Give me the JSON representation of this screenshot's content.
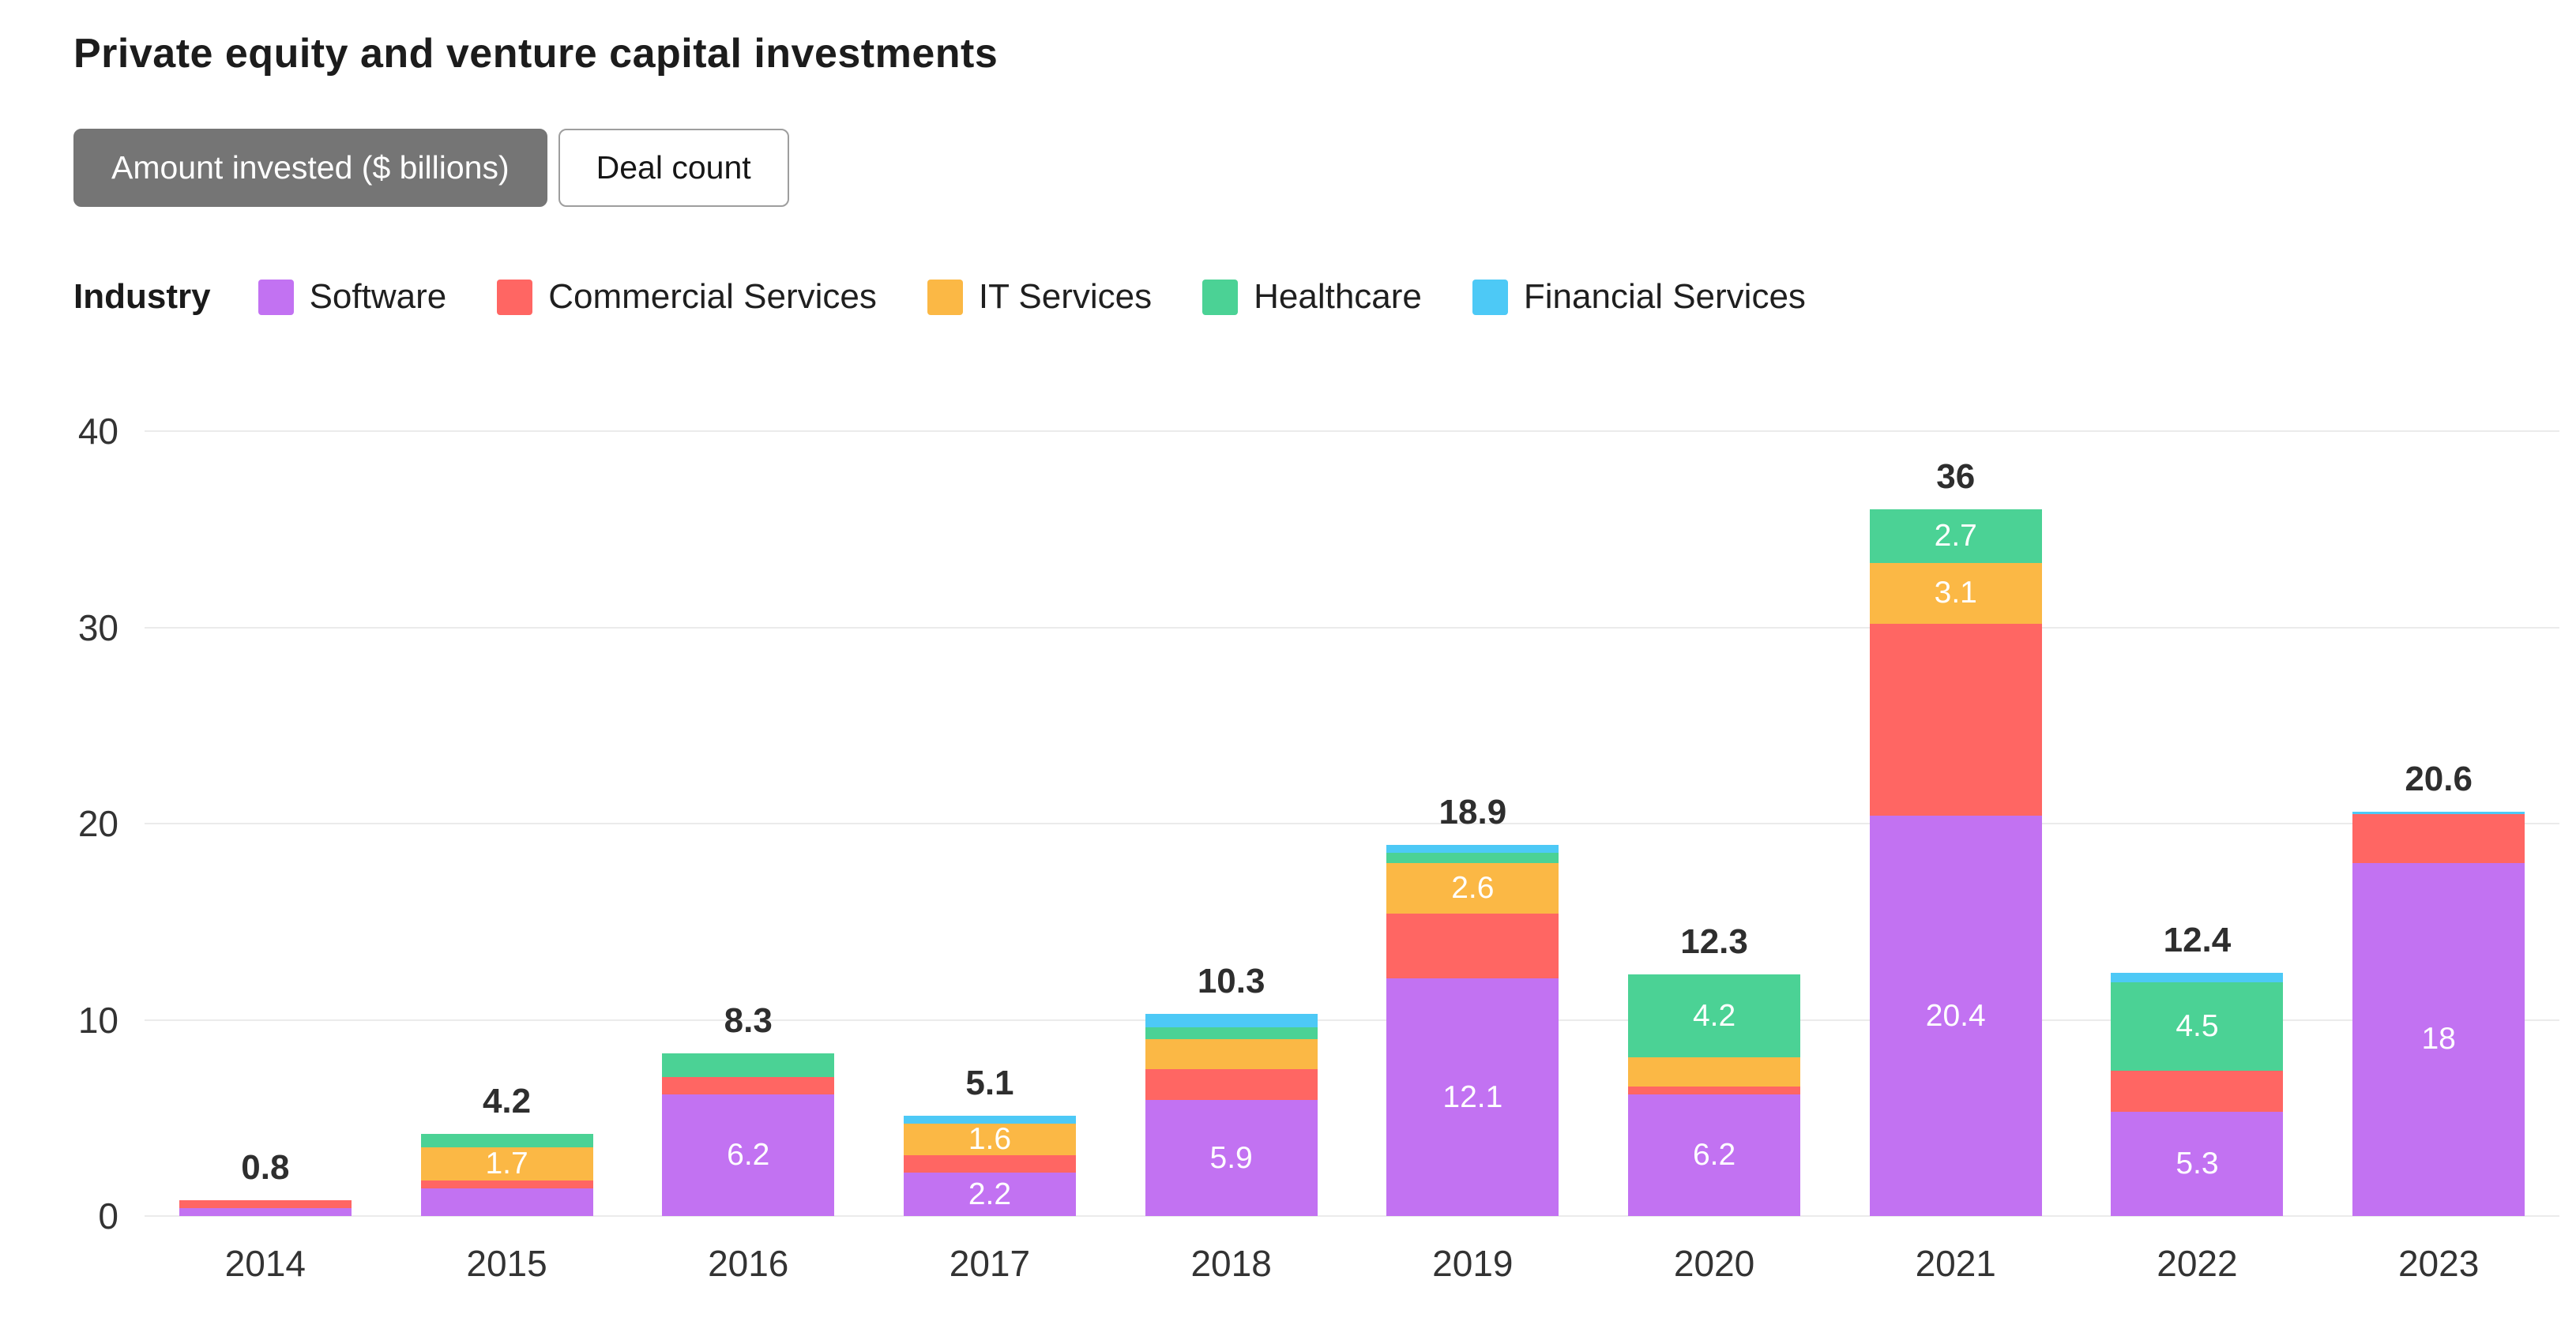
{
  "title": "Private equity and venture capital investments",
  "toggle": {
    "options": [
      {
        "label": "Amount invested ($ billions)",
        "selected": true
      },
      {
        "label": "Deal count",
        "selected": false
      }
    ]
  },
  "legend": {
    "label": "Industry"
  },
  "chart_data": {
    "type": "bar",
    "stacked": true,
    "title": "Private equity and venture capital investments",
    "unit": "$ billions",
    "grid": true,
    "legend_position": "top",
    "categories": [
      "2014",
      "2015",
      "2016",
      "2017",
      "2018",
      "2019",
      "2020",
      "2021",
      "2022",
      "2023"
    ],
    "totals_labels": [
      "0.8",
      "4.2",
      "8.3",
      "5.1",
      "10.3",
      "18.9",
      "12.3",
      "36",
      "12.4",
      "20.6"
    ],
    "y_axis": {
      "ticks": [
        "0",
        "10",
        "20",
        "30",
        "40"
      ],
      "min": 0,
      "max": 40
    },
    "series": [
      {
        "name": "Software",
        "color": "#C272F2",
        "values": [
          0.4,
          1.4,
          6.2,
          2.2,
          5.9,
          12.1,
          6.2,
          20.4,
          5.3,
          18
        ],
        "labels": [
          null,
          null,
          "6.2",
          "2.2",
          "5.9",
          "12.1",
          "6.2",
          "20.4",
          "5.3",
          "18"
        ]
      },
      {
        "name": "Commercial Services",
        "color": "#FF6663",
        "values": [
          0.4,
          0.4,
          0.9,
          0.9,
          1.6,
          3.3,
          0.4,
          9.8,
          2.1,
          2.5
        ],
        "labels": [
          null,
          null,
          null,
          null,
          null,
          null,
          null,
          null,
          null,
          null
        ]
      },
      {
        "name": "IT Services",
        "color": "#FBB845",
        "values": [
          0,
          1.7,
          0,
          1.6,
          1.5,
          2.6,
          1.5,
          3.1,
          0,
          0
        ],
        "labels": [
          null,
          "1.7",
          null,
          "1.6",
          null,
          "2.6",
          null,
          "3.1",
          null,
          null
        ]
      },
      {
        "name": "Healthcare",
        "color": "#4BD295",
        "values": [
          0,
          0.7,
          1.2,
          0,
          0.6,
          0.5,
          4.2,
          2.7,
          4.5,
          0
        ],
        "labels": [
          null,
          null,
          null,
          null,
          null,
          null,
          "4.2",
          "2.7",
          "4.5",
          null
        ]
      },
      {
        "name": "Financial Services",
        "color": "#4DC9F6",
        "values": [
          0,
          0,
          0,
          0.4,
          0.7,
          0.4,
          0,
          0,
          0.5,
          0.1
        ],
        "labels": [
          null,
          null,
          null,
          null,
          null,
          null,
          null,
          null,
          null,
          null
        ]
      }
    ]
  }
}
